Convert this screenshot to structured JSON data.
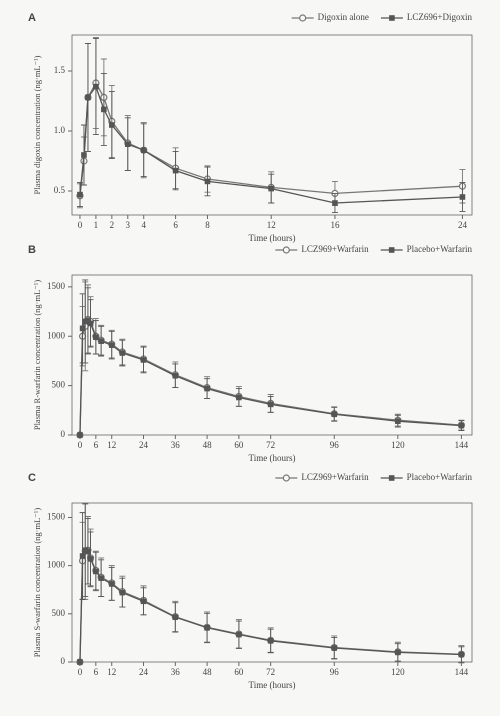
{
  "chart_data": [
    {
      "type": "line",
      "panel": "A",
      "x_label": "Time (hours)",
      "y_label": "Plasma digoxin concentration (ng·mL⁻¹)",
      "x": [
        0,
        0.25,
        0.5,
        1,
        1.5,
        2,
        3,
        4,
        6,
        8,
        12,
        16,
        24
      ],
      "xlim": [
        -0.5,
        24.6
      ],
      "xticks": [
        0,
        1,
        2,
        3,
        4,
        6,
        8,
        12,
        16,
        24
      ],
      "ylim": [
        0.3,
        1.8
      ],
      "yticks": [
        0.5,
        {
          "value": 1.0,
          "label": "1.0"
        },
        1.5
      ],
      "series": [
        {
          "name": "Digoxin alone",
          "color": "#777777",
          "marker": "circle",
          "values": [
            0.46,
            0.75,
            1.28,
            1.4,
            1.28,
            1.08,
            0.9,
            0.84,
            0.69,
            0.6,
            0.53,
            0.48,
            0.54
          ],
          "errors": [
            0.1,
            0.2,
            0.45,
            0.38,
            0.32,
            0.3,
            0.23,
            0.23,
            0.17,
            0.11,
            0.13,
            0.1,
            0.14
          ]
        },
        {
          "name": "LCZ696+Digoxin",
          "color": "#555555",
          "marker": "square",
          "values": [
            0.47,
            0.8,
            1.28,
            1.37,
            1.18,
            1.05,
            0.89,
            0.84,
            0.67,
            0.58,
            0.52,
            0.4,
            0.45
          ],
          "errors": [
            0.1,
            0.25,
            0.45,
            0.4,
            0.3,
            0.28,
            0.22,
            0.22,
            0.16,
            0.12,
            0.12,
            0.08,
            0.12
          ]
        }
      ]
    },
    {
      "type": "line",
      "panel": "B",
      "x_label": "Time (hours)",
      "y_label": "Plasma R-warfarin concentration (ng·mL⁻¹)",
      "x": [
        0,
        1,
        2,
        3,
        4,
        6,
        8,
        12,
        16,
        24,
        36,
        48,
        60,
        72,
        96,
        120,
        144
      ],
      "xlim": [
        -3,
        148
      ],
      "xticks": [
        0,
        6,
        12,
        24,
        36,
        48,
        60,
        72,
        96,
        120,
        144
      ],
      "ylim": [
        0,
        1620
      ],
      "yticks": [
        0,
        500,
        1000,
        1500
      ],
      "series": [
        {
          "name": "LCZ969+Warfarin",
          "color": "#777777",
          "marker": "circle",
          "values": [
            0,
            1000,
            1100,
            1170,
            1150,
            1000,
            960,
            920,
            840,
            770,
            610,
            480,
            390,
            320,
            215,
            150,
            100
          ],
          "errors": [
            0,
            300,
            450,
            350,
            250,
            180,
            150,
            140,
            130,
            130,
            130,
            110,
            100,
            90,
            70,
            60,
            50
          ]
        },
        {
          "name": "Placebo+Warfarin",
          "color": "#555555",
          "marker": "square",
          "values": [
            0,
            1080,
            1150,
            1160,
            1130,
            990,
            950,
            910,
            830,
            760,
            600,
            470,
            380,
            310,
            210,
            140,
            95
          ],
          "errors": [
            0,
            350,
            420,
            330,
            240,
            170,
            150,
            140,
            130,
            130,
            120,
            100,
            90,
            80,
            70,
            60,
            50
          ]
        }
      ]
    },
    {
      "type": "line",
      "panel": "C",
      "x_label": "Time (hours)",
      "y_label": "Plasma S-warfarin concentration (ng·mL⁻¹)",
      "x": [
        0,
        1,
        2,
        3,
        4,
        6,
        8,
        12,
        16,
        24,
        36,
        48,
        60,
        72,
        96,
        120,
        144
      ],
      "xlim": [
        -3,
        148
      ],
      "xticks": [
        0,
        6,
        12,
        24,
        36,
        48,
        60,
        72,
        96,
        120,
        144
      ],
      "ylim": [
        0,
        1650
      ],
      "yticks": [
        0,
        500,
        1000,
        1500
      ],
      "series": [
        {
          "name": "LCZ969+Warfarin",
          "color": "#777777",
          "marker": "circle",
          "values": [
            0,
            1050,
            1150,
            1160,
            1080,
            950,
            880,
            820,
            730,
            640,
            470,
            360,
            290,
            225,
            150,
            105,
            80
          ],
          "errors": [
            0,
            400,
            500,
            350,
            300,
            200,
            200,
            180,
            160,
            150,
            160,
            160,
            150,
            130,
            120,
            100,
            90
          ]
        },
        {
          "name": "Placebo+Warfarin",
          "color": "#555555",
          "marker": "square",
          "values": [
            0,
            1100,
            1160,
            1150,
            1070,
            940,
            870,
            810,
            720,
            630,
            465,
            355,
            285,
            220,
            145,
            100,
            78
          ],
          "errors": [
            0,
            450,
            480,
            340,
            280,
            200,
            190,
            170,
            150,
            140,
            150,
            150,
            140,
            120,
            110,
            90,
            80
          ]
        }
      ]
    }
  ]
}
